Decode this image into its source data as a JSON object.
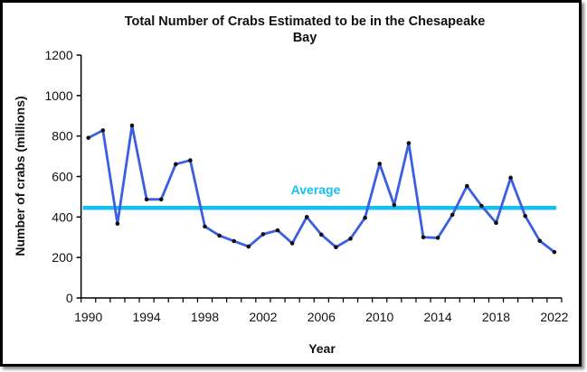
{
  "chart_data": {
    "type": "line",
    "title": "Total Number of Crabs Estimated to be in the Chesapeake Bay",
    "title_lines": [
      "Total Number of Crabs Estimated to be in the Chesapeake",
      "Bay"
    ],
    "xlabel": "Year",
    "ylabel": "Number of crabs (millions)",
    "ylim": [
      0,
      1200
    ],
    "yticks": [
      0,
      200,
      400,
      600,
      800,
      1000,
      1200
    ],
    "xticks": [
      1990,
      1994,
      1998,
      2002,
      2006,
      2010,
      2014,
      2018,
      2022
    ],
    "grid": false,
    "x": [
      1990,
      1991,
      1992,
      1993,
      1994,
      1995,
      1996,
      1997,
      1998,
      1999,
      2000,
      2001,
      2002,
      2003,
      2004,
      2005,
      2006,
      2007,
      2008,
      2009,
      2010,
      2011,
      2012,
      2013,
      2014,
      2015,
      2016,
      2017,
      2018,
      2019,
      2020,
      2021,
      2022
    ],
    "series": [
      {
        "name": "Crabs",
        "color": "#3a5fe0",
        "values": [
          791,
          828,
          367,
          852,
          487,
          487,
          661,
          680,
          353,
          308,
          281,
          254,
          315,
          334,
          270,
          400,
          313,
          251,
          293,
          396,
          663,
          459,
          765,
          300,
          297,
          411,
          553,
          455,
          371,
          594,
          405,
          282,
          227
        ]
      }
    ],
    "average": {
      "label": "Average",
      "value": 445,
      "color": "#14c0ee"
    }
  }
}
